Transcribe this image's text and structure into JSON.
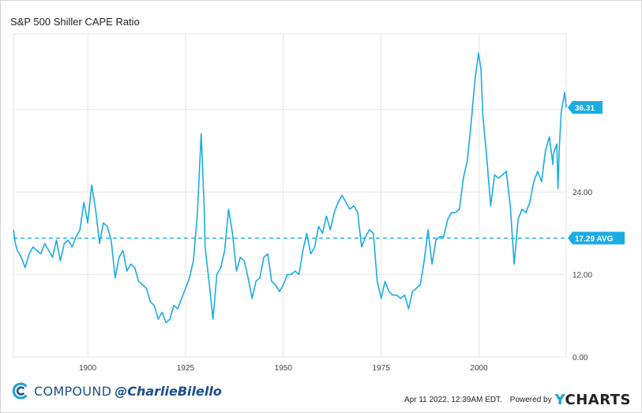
{
  "chart_data": {
    "type": "line",
    "title": "S&P 500 Shiller CAPE Ratio",
    "xlabel": "",
    "ylabel": "",
    "xlim": [
      1881,
      2022.3
    ],
    "ylim": [
      0,
      47
    ],
    "x_ticks": [
      "1900",
      "1925",
      "1950",
      "1975",
      "2000"
    ],
    "y_ticks": [
      "0.00",
      "12.00",
      "24.00"
    ],
    "grid": true,
    "series": [
      {
        "color": "#1aace4",
        "points": [
          [
            1881,
            18.5
          ],
          [
            1881.5,
            16.5
          ],
          [
            1882,
            15.5
          ],
          [
            1883,
            14.5
          ],
          [
            1884,
            13.0
          ],
          [
            1885,
            15.0
          ],
          [
            1886,
            16.0
          ],
          [
            1887,
            15.5
          ],
          [
            1888,
            15.0
          ],
          [
            1889,
            16.5
          ],
          [
            1890,
            15.5
          ],
          [
            1891,
            14.5
          ],
          [
            1892,
            17.0
          ],
          [
            1893,
            14.0
          ],
          [
            1894,
            16.5
          ],
          [
            1895,
            17.0
          ],
          [
            1896,
            16.0
          ],
          [
            1897,
            17.5
          ],
          [
            1898,
            18.5
          ],
          [
            1899,
            22.5
          ],
          [
            1900,
            19.5
          ],
          [
            1901,
            25.0
          ],
          [
            1902,
            21.5
          ],
          [
            1903,
            16.5
          ],
          [
            1904,
            19.5
          ],
          [
            1905,
            19.0
          ],
          [
            1906,
            17.0
          ],
          [
            1907,
            11.5
          ],
          [
            1908,
            14.5
          ],
          [
            1909,
            15.5
          ],
          [
            1910,
            12.5
          ],
          [
            1911,
            13.5
          ],
          [
            1912,
            13.0
          ],
          [
            1913,
            11.0
          ],
          [
            1914,
            10.5
          ],
          [
            1915,
            10.0
          ],
          [
            1916,
            8.0
          ],
          [
            1917,
            7.5
          ],
          [
            1918,
            5.5
          ],
          [
            1919,
            6.5
          ],
          [
            1920,
            5.0
          ],
          [
            1921,
            5.5
          ],
          [
            1922,
            7.5
          ],
          [
            1923,
            7.0
          ],
          [
            1924,
            8.5
          ],
          [
            1925,
            10.0
          ],
          [
            1926,
            11.5
          ],
          [
            1927,
            14.0
          ],
          [
            1928,
            20.5
          ],
          [
            1929,
            32.5
          ],
          [
            1929.8,
            21.0
          ],
          [
            1930,
            16.0
          ],
          [
            1931,
            11.0
          ],
          [
            1932,
            5.5
          ],
          [
            1933,
            12.0
          ],
          [
            1934,
            13.0
          ],
          [
            1935,
            15.5
          ],
          [
            1936,
            21.5
          ],
          [
            1937,
            18.0
          ],
          [
            1938,
            12.5
          ],
          [
            1939,
            14.5
          ],
          [
            1940,
            14.0
          ],
          [
            1941,
            11.5
          ],
          [
            1942,
            8.5
          ],
          [
            1943,
            11.0
          ],
          [
            1944,
            11.5
          ],
          [
            1945,
            14.5
          ],
          [
            1946,
            15.0
          ],
          [
            1947,
            11.0
          ],
          [
            1948,
            10.5
          ],
          [
            1949,
            9.5
          ],
          [
            1950,
            10.5
          ],
          [
            1951,
            12.0
          ],
          [
            1952,
            12.0
          ],
          [
            1953,
            12.5
          ],
          [
            1954,
            12.0
          ],
          [
            1955,
            15.5
          ],
          [
            1956,
            18.0
          ],
          [
            1957,
            15.0
          ],
          [
            1958,
            16.0
          ],
          [
            1959,
            19.0
          ],
          [
            1960,
            18.0
          ],
          [
            1961,
            20.5
          ],
          [
            1962,
            18.5
          ],
          [
            1963,
            21.0
          ],
          [
            1964,
            22.5
          ],
          [
            1965,
            23.5
          ],
          [
            1966,
            22.5
          ],
          [
            1967,
            21.5
          ],
          [
            1968,
            22.0
          ],
          [
            1969,
            21.0
          ],
          [
            1970,
            16.0
          ],
          [
            1971,
            17.5
          ],
          [
            1972,
            18.5
          ],
          [
            1973,
            18.0
          ],
          [
            1974,
            11.0
          ],
          [
            1975,
            8.5
          ],
          [
            1976,
            11.0
          ],
          [
            1977,
            9.5
          ],
          [
            1978,
            9.0
          ],
          [
            1979,
            9.0
          ],
          [
            1980,
            8.5
          ],
          [
            1981,
            9.0
          ],
          [
            1982,
            7.0
          ],
          [
            1983,
            9.5
          ],
          [
            1984,
            10.0
          ],
          [
            1985,
            10.5
          ],
          [
            1986,
            14.0
          ],
          [
            1987,
            18.5
          ],
          [
            1987.9,
            14.0
          ],
          [
            1988,
            13.5
          ],
          [
            1989,
            17.0
          ],
          [
            1990,
            17.5
          ],
          [
            1991,
            17.5
          ],
          [
            1992,
            20.0
          ],
          [
            1993,
            21.0
          ],
          [
            1994,
            21.0
          ],
          [
            1995,
            21.5
          ],
          [
            1996,
            26.0
          ],
          [
            1997,
            28.5
          ],
          [
            1998,
            34.0
          ],
          [
            1999,
            40.5
          ],
          [
            1999.9,
            44.2
          ],
          [
            2000.5,
            42.0
          ],
          [
            2001,
            35.0
          ],
          [
            2002,
            29.0
          ],
          [
            2003,
            22.0
          ],
          [
            2004,
            26.5
          ],
          [
            2005,
            26.0
          ],
          [
            2006,
            26.5
          ],
          [
            2007,
            27.0
          ],
          [
            2008,
            22.0
          ],
          [
            2009,
            13.5
          ],
          [
            2010,
            20.0
          ],
          [
            2011,
            21.5
          ],
          [
            2012,
            21.0
          ],
          [
            2013,
            22.5
          ],
          [
            2014,
            25.5
          ],
          [
            2015,
            27.0
          ],
          [
            2016,
            25.5
          ],
          [
            2017,
            30.0
          ],
          [
            2018,
            32.0
          ],
          [
            2018.9,
            28.0
          ],
          [
            2019,
            29.5
          ],
          [
            2019.9,
            31.0
          ],
          [
            2020.2,
            24.5
          ],
          [
            2020.5,
            30.0
          ],
          [
            2021,
            35.5
          ],
          [
            2021.9,
            38.5
          ],
          [
            2022.3,
            36.31
          ]
        ]
      }
    ],
    "reference_line": {
      "value": 17.29,
      "label": "17.29 AVG",
      "style": "dashed"
    },
    "last_value_label": "36.31",
    "accent_color": "#1aace4",
    "grid_color": "#e6e6e6"
  },
  "footer": {
    "logo_text": "COMPOUND",
    "handle": "@CharlieBilello",
    "timestamp": "Apr 11 2022, 12:39AM EDT.",
    "powered_by": "Powered by",
    "brand_y": "Y",
    "brand_rest": "CHARTS"
  }
}
